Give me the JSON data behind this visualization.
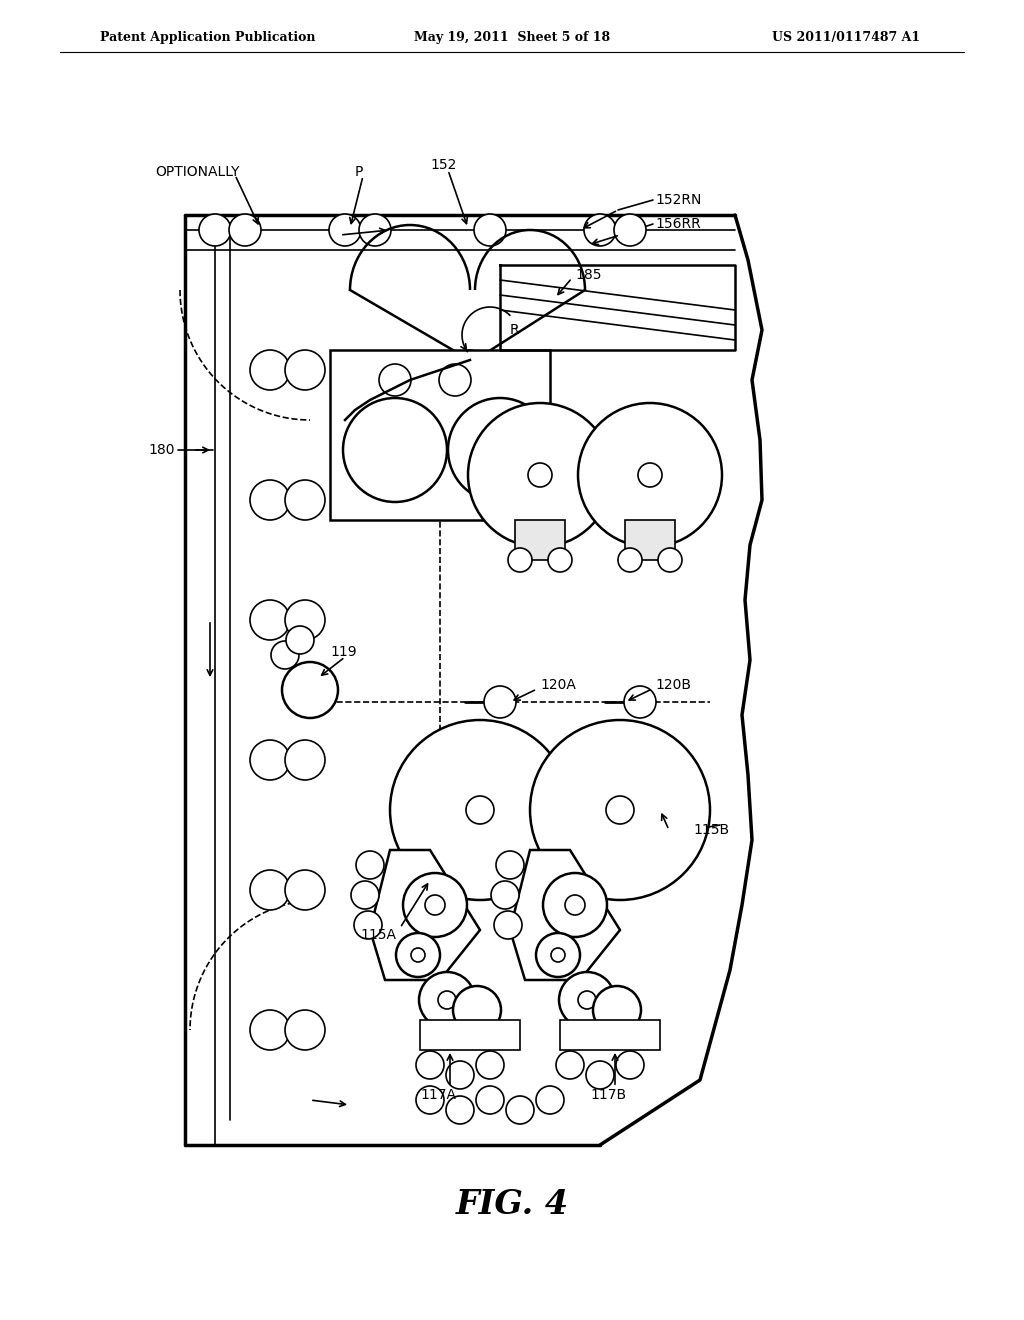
{
  "background_color": "#ffffff",
  "header_left": "Patent Application Publication",
  "header_mid": "May 19, 2011  Sheet 5 of 18",
  "header_right": "US 2011/0117487 A1",
  "figure_label": "FIG. 4"
}
